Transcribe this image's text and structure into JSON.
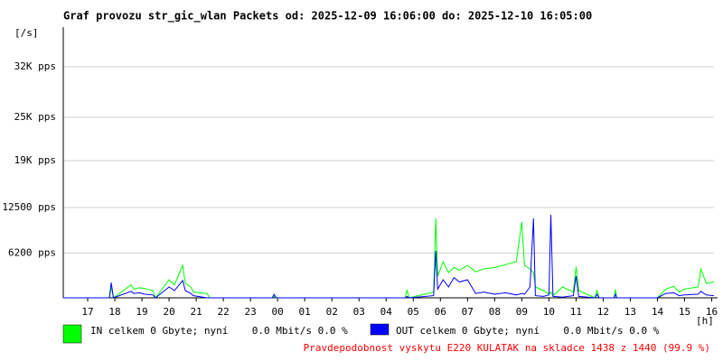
{
  "chart_data": {
    "type": "line",
    "title": "Graf provozu str_gic_wlan Packets od: 2025-12-09 16:06:00 do: 2025-12-10 16:05:00",
    "ylabel": "[/s]",
    "xlabel": "[h]",
    "annotation": "Pravdepodobnost vyskytu E220 KULATAK na skladce 1438 z 1440 (99.9 %)",
    "xlim": [
      16.1,
      40.0833
    ],
    "ylim": [
      0,
      37500
    ],
    "xticks": [
      {
        "value": 17,
        "label": "17"
      },
      {
        "value": 18,
        "label": "18"
      },
      {
        "value": 19,
        "label": "19"
      },
      {
        "value": 20,
        "label": "20"
      },
      {
        "value": 21,
        "label": "21"
      },
      {
        "value": 22,
        "label": "22"
      },
      {
        "value": 23,
        "label": "23"
      },
      {
        "value": 24,
        "label": "00"
      },
      {
        "value": 25,
        "label": "01"
      },
      {
        "value": 26,
        "label": "02"
      },
      {
        "value": 27,
        "label": "03"
      },
      {
        "value": 28,
        "label": "04"
      },
      {
        "value": 29,
        "label": "05"
      },
      {
        "value": 30,
        "label": "06"
      },
      {
        "value": 31,
        "label": "07"
      },
      {
        "value": 32,
        "label": "08"
      },
      {
        "value": 33,
        "label": "09"
      },
      {
        "value": 34,
        "label": "10"
      },
      {
        "value": 35,
        "label": "11"
      },
      {
        "value": 36,
        "label": "12"
      },
      {
        "value": 37,
        "label": "13"
      },
      {
        "value": 38,
        "label": "14"
      },
      {
        "value": 39,
        "label": "15"
      },
      {
        "value": 40,
        "label": "16"
      }
    ],
    "yticks": [
      {
        "value": 6200,
        "label": "6200 pps"
      },
      {
        "value": 12500,
        "label": "12500 pps"
      },
      {
        "value": 19000,
        "label": "19K pps"
      },
      {
        "value": 25000,
        "label": "25K pps"
      },
      {
        "value": 32000,
        "label": "32K pps"
      }
    ],
    "grid": true,
    "x": [
      16.1,
      17.8,
      17.87,
      17.95,
      18.6,
      18.7,
      18.9,
      19.1,
      19.4,
      19.5,
      20.0,
      20.2,
      20.5,
      20.6,
      20.8,
      20.9,
      21.4,
      21.5,
      23.8,
      23.87,
      23.95,
      28.7,
      28.77,
      28.85,
      29.75,
      29.83,
      29.9,
      30.1,
      30.3,
      30.5,
      30.7,
      31.0,
      31.3,
      31.6,
      32.0,
      32.4,
      32.8,
      33.0,
      33.1,
      33.3,
      33.43,
      33.5,
      33.8,
      34.0,
      34.07,
      34.15,
      34.5,
      34.9,
      35.0,
      35.1,
      35.7,
      35.77,
      35.85,
      36.4,
      36.45,
      36.5,
      38.0,
      38.3,
      38.6,
      38.8,
      39.0,
      39.5,
      39.6,
      39.8,
      40.08
    ],
    "series": [
      {
        "name": "IN celkem 0 Gbyte; nyní    0.0 Mbit/s 0.0 %",
        "color": "#00ff00",
        "values": [
          0,
          0,
          1500,
          0,
          1800,
          1200,
          1400,
          1300,
          1000,
          0,
          2500,
          1800,
          4500,
          2000,
          1500,
          800,
          600,
          0,
          0,
          200,
          0,
          0,
          1100,
          0,
          800,
          11000,
          3000,
          5000,
          3500,
          4200,
          3800,
          4500,
          3600,
          4000,
          4200,
          4600,
          5000,
          10500,
          4500,
          4000,
          3500,
          1500,
          1000,
          500,
          800,
          300,
          1500,
          800,
          4300,
          1000,
          0,
          1100,
          0,
          0,
          1200,
          0,
          0,
          1200,
          1600,
          800,
          1200,
          1500,
          4000,
          2000,
          2200
        ]
      },
      {
        "name": "OUT celkem 0 Gbyte; nyní    0.0 Mbit/s 0.0 %",
        "color": "#0000ff",
        "values": [
          0,
          0,
          2100,
          0,
          900,
          600,
          700,
          500,
          400,
          0,
          1500,
          1000,
          2400,
          1000,
          600,
          300,
          0,
          0,
          0,
          500,
          0,
          0,
          200,
          0,
          300,
          6500,
          1200,
          2500,
          1500,
          2800,
          2200,
          2500,
          600,
          800,
          500,
          700,
          400,
          600,
          500,
          1500,
          11000,
          300,
          200,
          400,
          11500,
          200,
          100,
          300,
          3000,
          200,
          0,
          500,
          0,
          0,
          500,
          0,
          0,
          600,
          700,
          300,
          400,
          500,
          900,
          400,
          300
        ]
      }
    ]
  }
}
